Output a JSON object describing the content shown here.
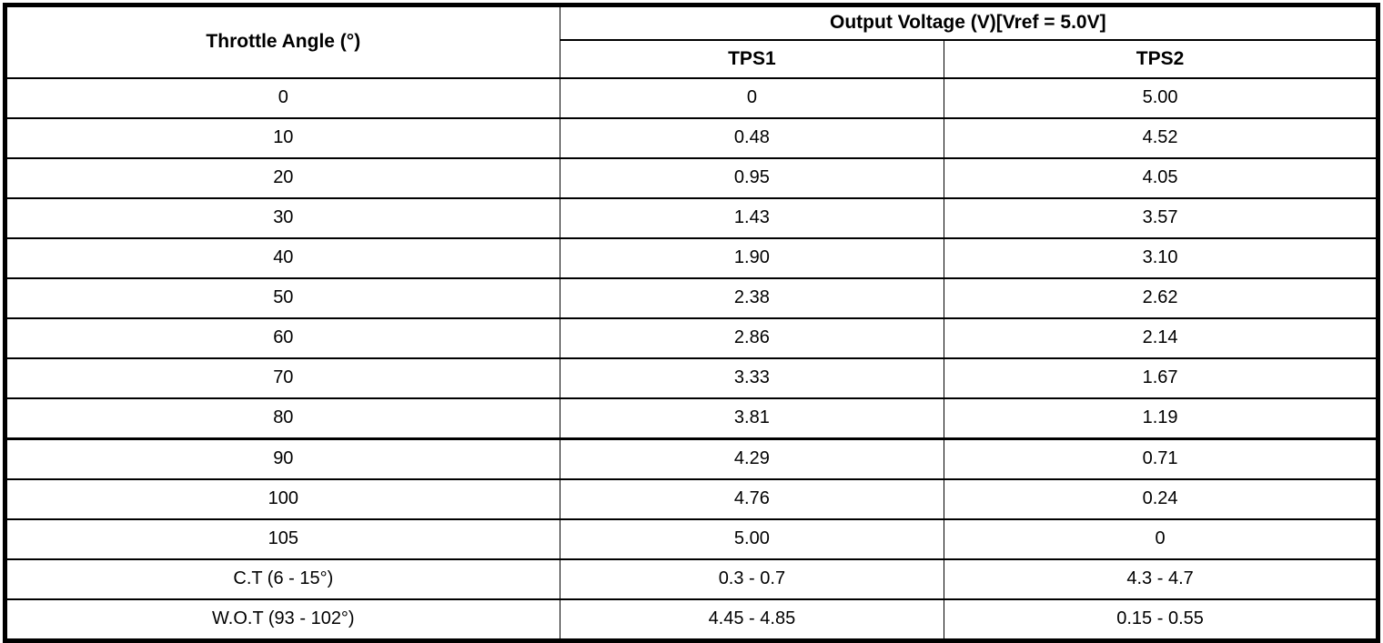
{
  "colors": {
    "border": "#000000",
    "background": "#ffffff",
    "text": "#000000"
  },
  "table": {
    "header": {
      "throttle": "Throttle Angle (°)",
      "output_voltage": "Output Voltage (V)[Vref = 5.0V]",
      "tps1": "TPS1",
      "tps2": "TPS2"
    },
    "rows": [
      {
        "angle": "0",
        "tps1": "0",
        "tps2": "5.00"
      },
      {
        "angle": "10",
        "tps1": "0.48",
        "tps2": "4.52"
      },
      {
        "angle": "20",
        "tps1": "0.95",
        "tps2": "4.05"
      },
      {
        "angle": "30",
        "tps1": "1.43",
        "tps2": "3.57"
      },
      {
        "angle": "40",
        "tps1": "1.90",
        "tps2": "3.10"
      },
      {
        "angle": "50",
        "tps1": "2.38",
        "tps2": "2.62"
      },
      {
        "angle": "60",
        "tps1": "2.86",
        "tps2": "2.14"
      },
      {
        "angle": "70",
        "tps1": "3.33",
        "tps2": "1.67"
      },
      {
        "angle": "80",
        "tps1": "3.81",
        "tps2": "1.19"
      },
      {
        "angle": "90",
        "tps1": "4.29",
        "tps2": "0.71",
        "heavy_top_border": true
      },
      {
        "angle": "100",
        "tps1": "4.76",
        "tps2": "0.24"
      },
      {
        "angle": "105",
        "tps1": "5.00",
        "tps2": "0"
      },
      {
        "angle": "C.T (6 - 15°)",
        "tps1": "0.3 - 0.7",
        "tps2": "4.3 - 4.7"
      },
      {
        "angle": "W.O.T (93 - 102°)",
        "tps1": "4.45 - 4.85",
        "tps2": "0.15 - 0.55"
      }
    ]
  }
}
